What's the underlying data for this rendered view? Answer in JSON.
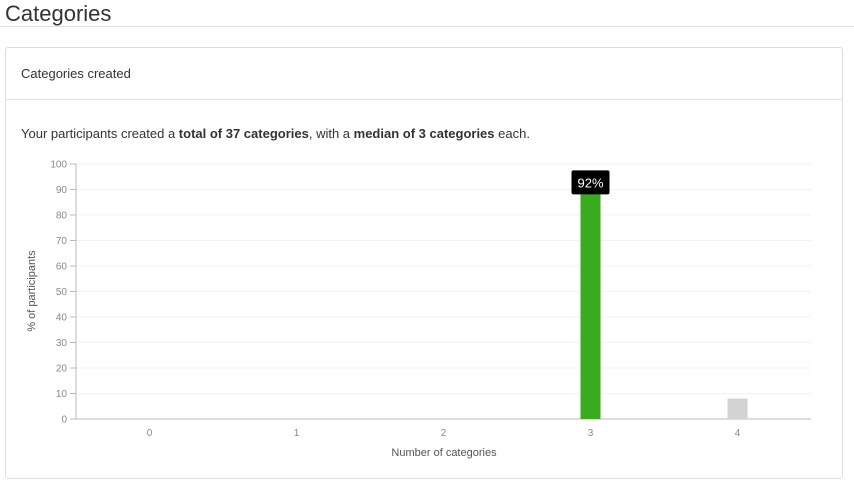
{
  "page": {
    "title": "Categories"
  },
  "card": {
    "title": "Categories created",
    "summary": {
      "prefix": "Your participants created a ",
      "total_text": "total of 37 categories",
      "middle": ", with a ",
      "median_text": "median of 3 categories",
      "suffix": " each."
    }
  },
  "colors": {
    "highlight_bar": "#3aaa1e",
    "other_bar": "#d3d3d3",
    "tooltip_bg": "#000000"
  },
  "chart_data": {
    "type": "bar",
    "categories": [
      "0",
      "1",
      "2",
      "3",
      "4"
    ],
    "values": [
      0,
      0,
      0,
      92,
      8
    ],
    "highlight_index": 3,
    "tooltip": {
      "index": 3,
      "label": "92%"
    },
    "title": "",
    "xlabel": "Number of categories",
    "ylabel": "% of participants",
    "ylim": [
      0,
      100
    ],
    "yticks": [
      0,
      10,
      20,
      30,
      40,
      50,
      60,
      70,
      80,
      90,
      100
    ],
    "grid": true
  }
}
